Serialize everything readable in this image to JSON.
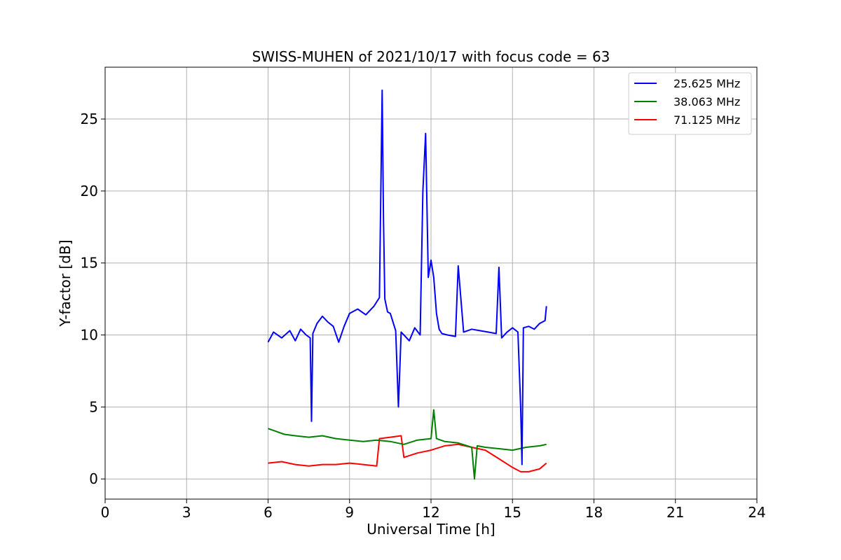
{
  "chart_data": {
    "type": "line",
    "title": "SWISS-MUHEN of 2021/10/17 with focus code = 63",
    "xlabel": "Universal Time [h]",
    "ylabel": "Y-factor [dB]",
    "xlim": [
      0,
      24
    ],
    "ylim": [
      -1.4,
      28.6
    ],
    "xticks": [
      0,
      3,
      6,
      9,
      12,
      15,
      18,
      21,
      24
    ],
    "yticks": [
      0,
      5,
      10,
      15,
      20,
      25
    ],
    "grid": true,
    "legend_position": "top-right",
    "series": [
      {
        "name": "25.625 MHz",
        "color": "#0000ff",
        "x": [
          6.0,
          6.2,
          6.5,
          6.8,
          7.0,
          7.2,
          7.4,
          7.55,
          7.6,
          7.65,
          7.8,
          8.0,
          8.2,
          8.4,
          8.6,
          8.8,
          9.0,
          9.3,
          9.6,
          9.9,
          10.1,
          10.2,
          10.25,
          10.3,
          10.4,
          10.5,
          10.7,
          10.8,
          10.9,
          11.0,
          11.2,
          11.4,
          11.6,
          11.7,
          11.8,
          11.9,
          12.0,
          12.1,
          12.2,
          12.3,
          12.4,
          12.6,
          12.9,
          13.0,
          13.2,
          13.5,
          13.8,
          14.1,
          14.4,
          14.5,
          14.6,
          14.8,
          15.0,
          15.2,
          15.3,
          15.35,
          15.4,
          15.6,
          15.8,
          16.0,
          16.2,
          16.25
        ],
        "y": [
          9.5,
          10.2,
          9.8,
          10.3,
          9.6,
          10.4,
          10.0,
          9.8,
          4.0,
          10.1,
          10.8,
          11.3,
          10.9,
          10.6,
          9.5,
          10.6,
          11.5,
          11.8,
          11.4,
          12.0,
          12.6,
          27.0,
          18.0,
          12.5,
          11.6,
          11.5,
          10.3,
          5.0,
          10.2,
          10.0,
          9.6,
          10.5,
          10.0,
          20.0,
          24.0,
          14.0,
          15.2,
          14.0,
          11.5,
          10.4,
          10.1,
          10.0,
          9.9,
          14.8,
          10.2,
          10.4,
          10.3,
          10.2,
          10.1,
          14.7,
          9.8,
          10.2,
          10.5,
          10.2,
          5.0,
          1.0,
          10.5,
          10.6,
          10.4,
          10.8,
          11.0,
          12.0
        ]
      },
      {
        "name": "38.063 MHz",
        "color": "#008000",
        "x": [
          6.0,
          6.3,
          6.6,
          7.0,
          7.5,
          8.0,
          8.5,
          9.0,
          9.5,
          10.0,
          10.5,
          11.0,
          11.5,
          12.0,
          12.1,
          12.2,
          12.5,
          13.0,
          13.5,
          13.6,
          13.7,
          14.0,
          14.5,
          15.0,
          15.5,
          16.0,
          16.25
        ],
        "y": [
          3.5,
          3.3,
          3.1,
          3.0,
          2.9,
          3.0,
          2.8,
          2.7,
          2.6,
          2.7,
          2.6,
          2.4,
          2.7,
          2.8,
          4.8,
          2.8,
          2.6,
          2.5,
          2.2,
          0.0,
          2.3,
          2.2,
          2.1,
          2.0,
          2.2,
          2.3,
          2.4
        ]
      },
      {
        "name": "71.125 MHz",
        "color": "#ff0000",
        "x": [
          6.0,
          6.5,
          7.0,
          7.5,
          8.0,
          8.5,
          9.0,
          9.5,
          10.0,
          10.1,
          10.5,
          10.9,
          11.0,
          11.5,
          12.0,
          12.5,
          13.0,
          13.5,
          14.0,
          14.5,
          15.0,
          15.3,
          15.6,
          16.0,
          16.25
        ],
        "y": [
          1.1,
          1.2,
          1.0,
          0.9,
          1.0,
          1.0,
          1.1,
          1.0,
          0.9,
          2.8,
          2.9,
          3.0,
          1.5,
          1.8,
          2.0,
          2.3,
          2.4,
          2.2,
          2.0,
          1.4,
          0.8,
          0.5,
          0.5,
          0.7,
          1.1
        ]
      }
    ]
  }
}
